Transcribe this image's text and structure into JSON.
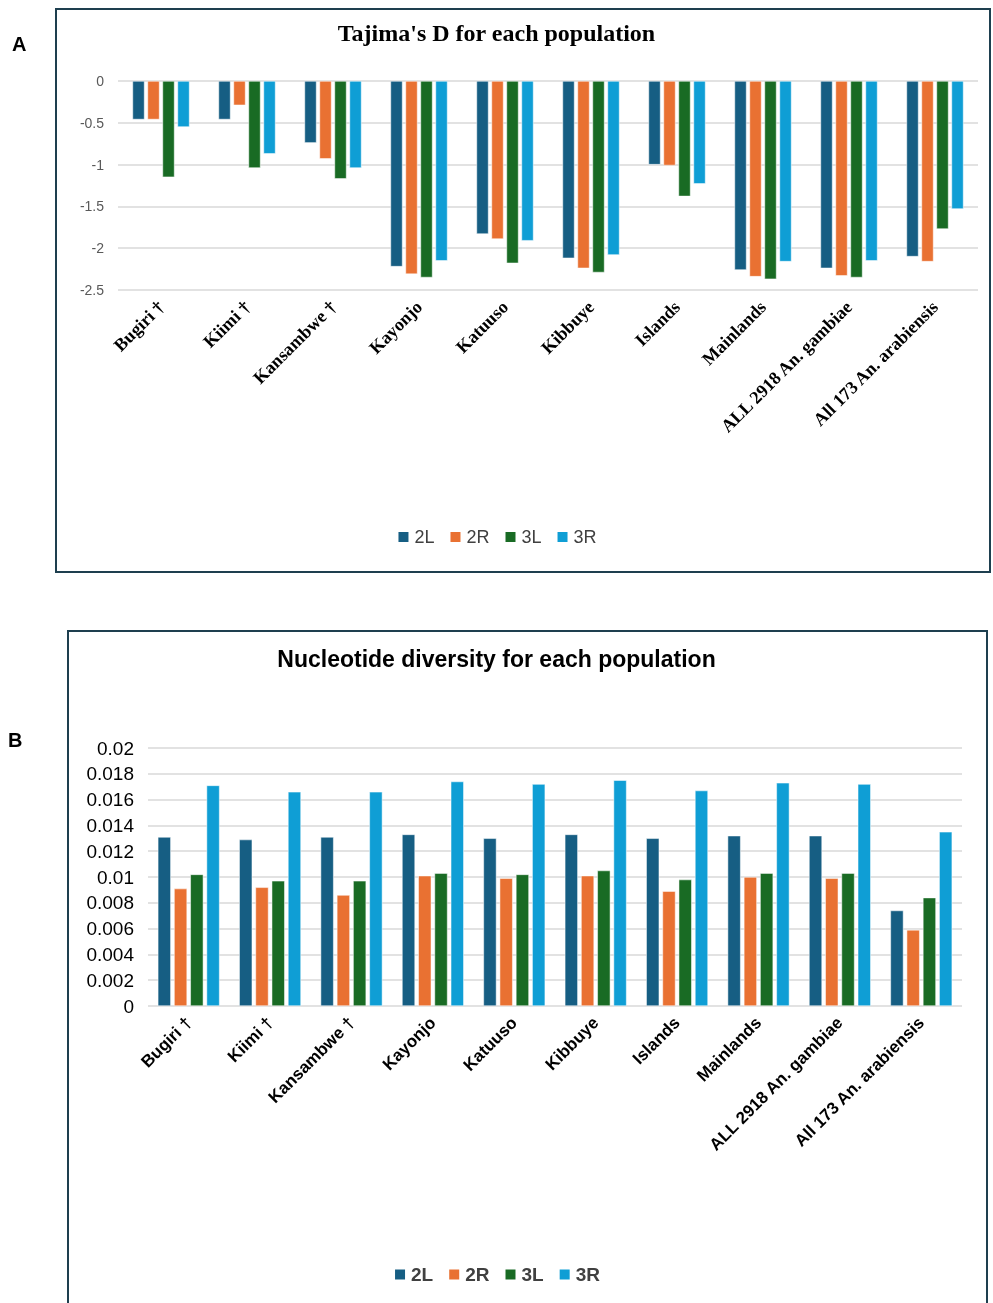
{
  "chart_data": [
    {
      "type": "bar",
      "title": "Tajima's D for each population",
      "annotations": [
        "A"
      ],
      "categories": [
        "Bugiri †",
        "Kiimi †",
        "Kansambwe †",
        "Kayonjo",
        "Katuuso",
        "Kibbuye",
        "Islands",
        "Mainlands",
        "ALL 2918 An. gambiae",
        "All 173 An. arabiensis"
      ],
      "series": [
        {
          "name": "2L",
          "color": "#165e83",
          "values": [
            -0.46,
            -0.46,
            -0.74,
            -2.22,
            -1.83,
            -2.12,
            -1.0,
            -2.26,
            -2.24,
            -2.1
          ]
        },
        {
          "name": "2R",
          "color": "#e97132",
          "values": [
            -0.46,
            -0.29,
            -0.93,
            -2.31,
            -1.89,
            -2.24,
            -1.01,
            -2.34,
            -2.33,
            -2.16
          ]
        },
        {
          "name": "3L",
          "color": "#196b24",
          "values": [
            -1.15,
            -1.04,
            -1.17,
            -2.35,
            -2.18,
            -2.29,
            -1.38,
            -2.37,
            -2.35,
            -1.77
          ]
        },
        {
          "name": "3R",
          "color": "#0f9ed5",
          "values": [
            -0.55,
            -0.87,
            -1.04,
            -2.15,
            -1.91,
            -2.08,
            -1.23,
            -2.16,
            -2.15,
            -1.53
          ]
        }
      ],
      "ylim": [
        -2.5,
        0
      ],
      "yticks": [
        -2.5,
        -2,
        -1.5,
        -1,
        -0.5,
        0
      ],
      "grid": "y",
      "legend": "bottom"
    },
    {
      "type": "bar",
      "title": "Nucleotide diversity for each population",
      "annotations": [
        "B"
      ],
      "categories": [
        "Bugiri †",
        "Kiimi †",
        "Kansambwe †",
        "Kayonjo",
        "Katuuso",
        "Kibbuye",
        "Islands",
        "Mainlands",
        "ALL 2918 An. gambiae",
        "All 173 An. arabiensis"
      ],
      "series": [
        {
          "name": "2L",
          "color": "#165e83",
          "values": [
            0.0131,
            0.0129,
            0.0131,
            0.0133,
            0.013,
            0.0133,
            0.013,
            0.0132,
            0.0132,
            0.0074
          ]
        },
        {
          "name": "2R",
          "color": "#e97132",
          "values": [
            0.0091,
            0.0092,
            0.0086,
            0.0101,
            0.0099,
            0.0101,
            0.0089,
            0.01,
            0.0099,
            0.0059
          ]
        },
        {
          "name": "3L",
          "color": "#196b24",
          "values": [
            0.0102,
            0.0097,
            0.0097,
            0.0103,
            0.0102,
            0.0105,
            0.0098,
            0.0103,
            0.0103,
            0.0084
          ]
        },
        {
          "name": "3R",
          "color": "#0f9ed5",
          "values": [
            0.0171,
            0.0166,
            0.0166,
            0.0174,
            0.0172,
            0.0175,
            0.0167,
            0.0173,
            0.0172,
            0.0135
          ]
        }
      ],
      "ylim": [
        0,
        0.02
      ],
      "yticks": [
        0,
        0.002,
        0.004,
        0.006,
        0.008,
        0.01,
        0.012,
        0.014,
        0.016,
        0.018,
        0.02
      ],
      "grid": "y",
      "legend": "bottom"
    }
  ]
}
